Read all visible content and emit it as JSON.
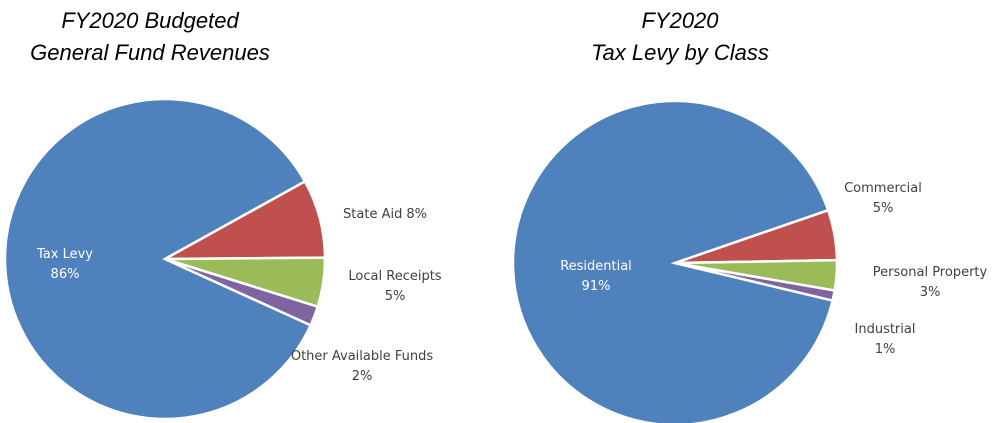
{
  "chart_data": [
    {
      "type": "pie",
      "title": [
        "FY2020 Budgeted",
        "General Fund Revenues"
      ],
      "categories": [
        "Tax Levy",
        "State Aid",
        "Local Receipts",
        "Other Available Funds"
      ],
      "values": [
        86,
        8,
        5,
        2
      ],
      "value_labels": [
        "86%",
        "8%",
        "5%",
        "2%"
      ],
      "colors": [
        "#4f81bd",
        "#c0504d",
        "#9bbb59",
        "#8064a2"
      ]
    },
    {
      "type": "pie",
      "title": [
        "FY2020",
        "Tax Levy by Class"
      ],
      "categories": [
        "Residential",
        "Commercial",
        "Personal Property",
        "Industrial"
      ],
      "values": [
        91,
        5,
        3,
        1
      ],
      "value_labels": [
        "91%",
        "5%",
        "3%",
        "1%"
      ],
      "colors": [
        "#4f81bd",
        "#c0504d",
        "#9bbb59",
        "#8064a2"
      ]
    }
  ]
}
